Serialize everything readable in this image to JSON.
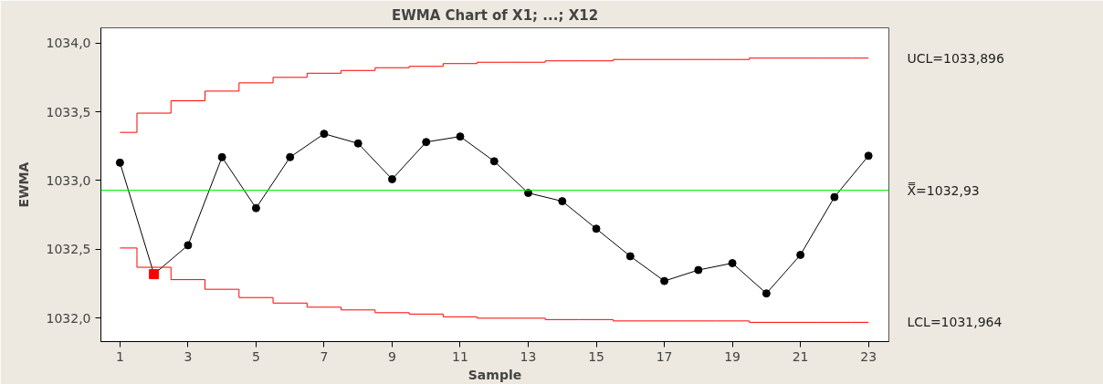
{
  "chart_data": {
    "type": "line",
    "title": "EWMA Chart of X1; ...; X12",
    "xlabel": "Sample",
    "ylabel": "EWMA",
    "x": [
      1,
      2,
      3,
      4,
      5,
      6,
      7,
      8,
      9,
      10,
      11,
      12,
      13,
      14,
      15,
      16,
      17,
      18,
      19,
      20,
      21,
      22,
      23
    ],
    "xlim": [
      0.44,
      23.6
    ],
    "xticks": [
      1,
      3,
      5,
      7,
      9,
      11,
      13,
      15,
      17,
      19,
      21,
      23
    ],
    "ylim": [
      1031.83,
      1034.11
    ],
    "yticks": [
      {
        "value": 1032.0,
        "label": "1032,0"
      },
      {
        "value": 1032.5,
        "label": "1032,5"
      },
      {
        "value": 1033.0,
        "label": "1033,0"
      },
      {
        "value": 1033.5,
        "label": "1033,5"
      },
      {
        "value": 1034.0,
        "label": "1034,0"
      }
    ],
    "grid": false,
    "series": [
      {
        "color": "#000000",
        "marker": "circle",
        "values": [
          1033.13,
          1032.32,
          1032.53,
          1033.17,
          1032.8,
          1033.17,
          1033.34,
          1033.27,
          1033.01,
          1033.28,
          1033.32,
          1033.14,
          1032.91,
          1032.85,
          1032.65,
          1032.45,
          1032.27,
          1032.35,
          1032.4,
          1032.18,
          1032.46,
          1032.88,
          1033.18
        ]
      },
      {
        "type": "scatter",
        "color": "#ff0000",
        "marker": "square",
        "x": [
          2
        ],
        "values": [
          1032.32
        ]
      },
      {
        "type": "step",
        "name": "UCL=1033,896",
        "color": "#ff0000",
        "values": [
          1033.35,
          1033.49,
          1033.58,
          1033.65,
          1033.71,
          1033.75,
          1033.78,
          1033.8,
          1033.82,
          1033.83,
          1033.85,
          1033.86,
          1033.86,
          1033.87,
          1033.87,
          1033.88,
          1033.88,
          1033.88,
          1033.88,
          1033.89,
          1033.89,
          1033.89,
          1033.89
        ]
      },
      {
        "type": "step",
        "name": "LCL=1031,964",
        "color": "#ff0000",
        "values": [
          1032.51,
          1032.37,
          1032.28,
          1032.21,
          1032.15,
          1032.11,
          1032.08,
          1032.06,
          1032.04,
          1032.03,
          1032.01,
          1032.0,
          1032.0,
          1031.99,
          1031.99,
          1031.98,
          1031.98,
          1031.98,
          1031.98,
          1031.97,
          1031.97,
          1031.97,
          1031.97
        ]
      }
    ],
    "ref_lines": [
      {
        "axis": "y",
        "value": 1032.93,
        "label": "X̿=1032,93",
        "color": "#00ee00"
      }
    ]
  }
}
